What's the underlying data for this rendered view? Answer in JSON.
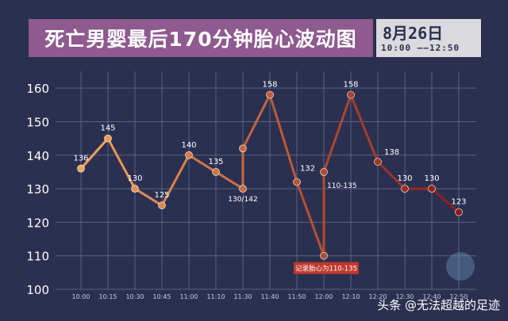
{
  "title": "死亡男婴最后170分钟胎心波动图",
  "date": "8月26日",
  "time_range": "10:00 ——12:50",
  "watermark": "头条 @无法超越的足迹",
  "annotation": "记录胎心为110-135",
  "chart_data": {
    "type": "line",
    "title": "死亡男婴最后170分钟胎心波动图",
    "categories": [
      "10:00",
      "10:15",
      "10:30",
      "10:45",
      "11:00",
      "11:10",
      "11:30",
      "11:40",
      "11:50",
      "12:00",
      "12:10",
      "12:20",
      "12:30",
      "12:40",
      "12:50"
    ],
    "ylim": [
      100,
      165
    ],
    "yticks": [
      100,
      110,
      120,
      130,
      140,
      150,
      160
    ],
    "grid": true,
    "points": [
      {
        "x": "10:00",
        "y": 136,
        "label": "136"
      },
      {
        "x": "10:15",
        "y": 145,
        "label": "145"
      },
      {
        "x": "10:30",
        "y": 130,
        "label": "130"
      },
      {
        "x": "10:45",
        "y": 125,
        "label": "125"
      },
      {
        "x": "11:00",
        "y": 140,
        "label": "140"
      },
      {
        "x": "11:10",
        "y": 135,
        "label": "135"
      },
      {
        "x": "11:30",
        "y": 130,
        "label": "130/142"
      },
      {
        "x": "11:30",
        "y": 142,
        "label": ""
      },
      {
        "x": "11:40",
        "y": 158,
        "label": "158"
      },
      {
        "x": "11:50",
        "y": 132,
        "label": "132"
      },
      {
        "x": "12:00",
        "y": 110,
        "label": ""
      },
      {
        "x": "12:00",
        "y": 135,
        "label": "110-135"
      },
      {
        "x": "12:10",
        "y": 158,
        "label": "158"
      },
      {
        "x": "12:20",
        "y": 138,
        "label": "138"
      },
      {
        "x": "12:30",
        "y": 130,
        "label": "130"
      },
      {
        "x": "12:40",
        "y": 130,
        "label": "130"
      },
      {
        "x": "12:50",
        "y": 123,
        "label": "123"
      }
    ],
    "colors": {
      "start": "#f2a65a",
      "end": "#8b1a1a",
      "grid": "#5b6080",
      "axis_text": "#ffffff",
      "annotation_bg": "#c0392b"
    }
  }
}
